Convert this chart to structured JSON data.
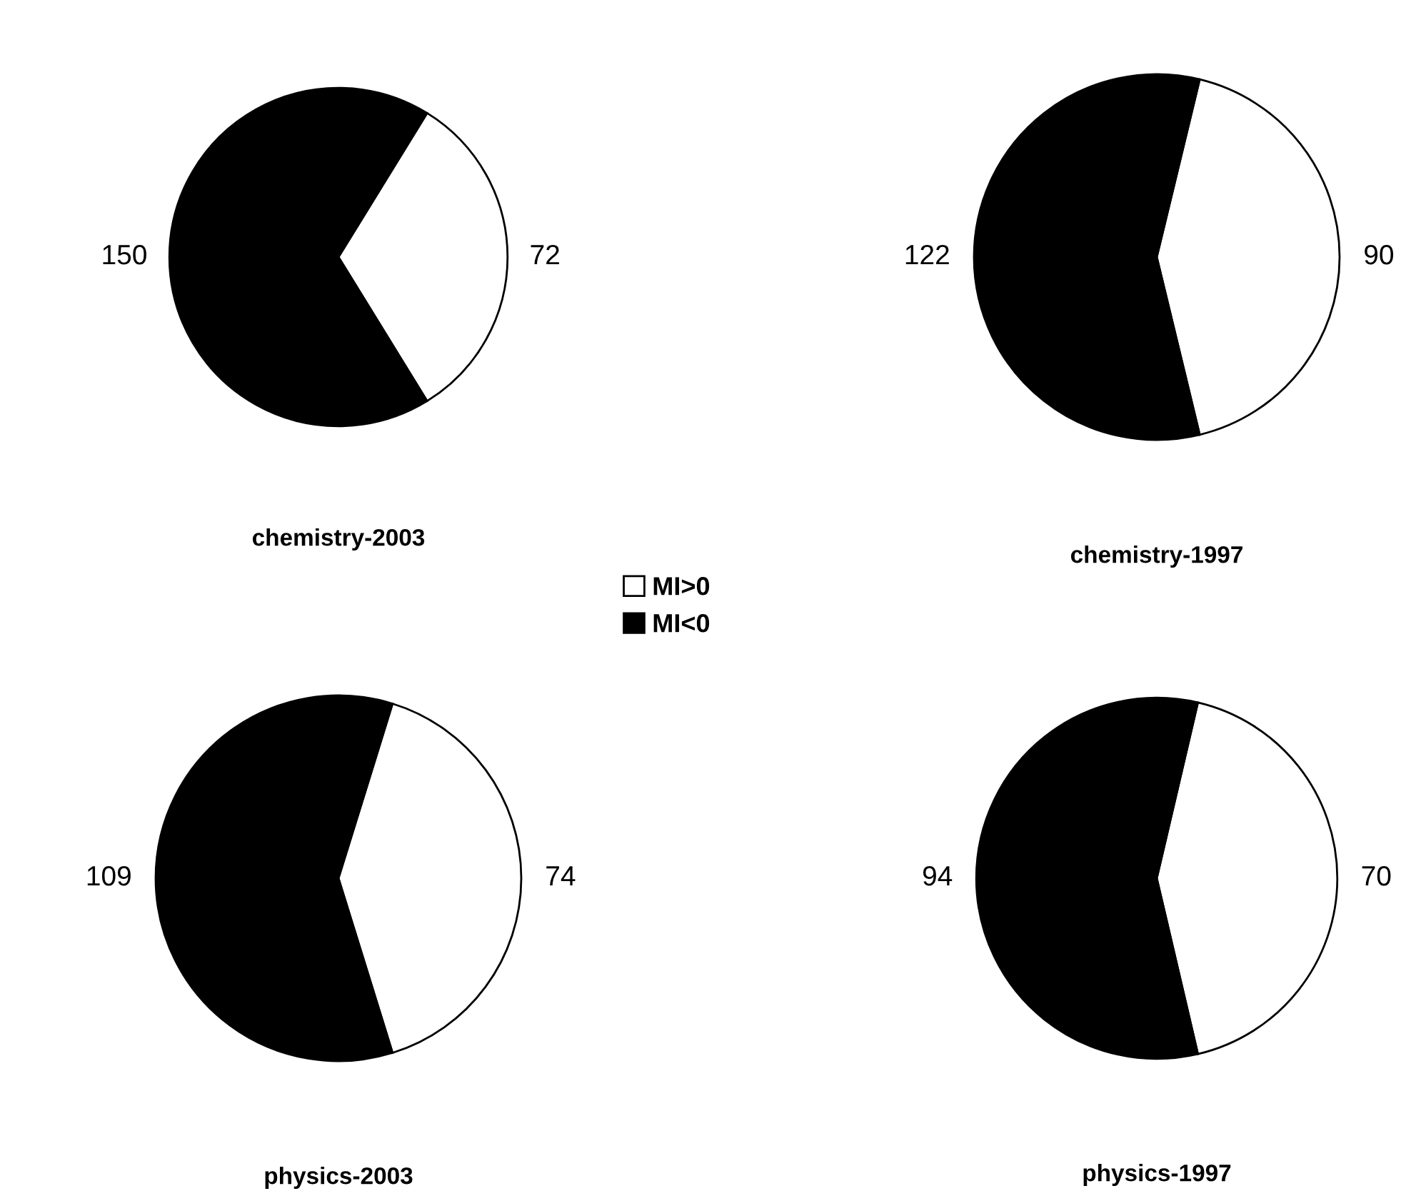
{
  "chart_data": [
    {
      "type": "pie",
      "title": "chemistry-2003",
      "categories": [
        "MI>0",
        "MI<0"
      ],
      "values": [
        72,
        150
      ],
      "colors": [
        "#ffffff",
        "#000000"
      ],
      "data_labels": true,
      "legend": "bottom right"
    },
    {
      "type": "pie",
      "title": "chemistry-1997",
      "categories": [
        null,
        null
      ],
      "values": [
        90,
        122
      ],
      "colors": [
        "#ffffff",
        "#000000"
      ],
      "data_labels": true
    },
    {
      "type": "pie",
      "title": "physics-2003",
      "categories": [
        null,
        null
      ],
      "values": [
        74,
        109
      ],
      "colors": [
        "#ffffff",
        "#000000"
      ],
      "data_labels": true
    },
    {
      "type": "pie",
      "title": "physics-1997",
      "categories": [
        null,
        null
      ],
      "values": [
        70,
        94
      ],
      "colors": [
        "#ffffff",
        "#000000"
      ],
      "data_labels": true
    }
  ]
}
